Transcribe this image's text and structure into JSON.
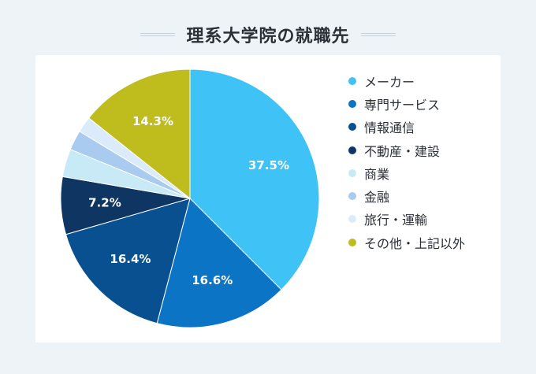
{
  "chart_data": {
    "type": "pie",
    "title": "理系大学院の就職先",
    "legend_position": "right",
    "categories": [
      "メーカー",
      "専門サービス",
      "情報通信",
      "不動産・建設",
      "商業",
      "金融",
      "旅行・運輸",
      "その他・上記以外"
    ],
    "values": [
      37.5,
      16.6,
      16.4,
      7.2,
      3.5,
      2.5,
      2.0,
      14.3
    ],
    "data_labels": [
      "37.5%",
      "16.6%",
      "16.4%",
      "7.2%",
      "",
      "",
      "",
      "14.3%"
    ],
    "colors": [
      "#3fc3f7",
      "#0c74c4",
      "#08508f",
      "#0f3563",
      "#c7eaf6",
      "#a8cbef",
      "#dcebfa",
      "#bfbc1e"
    ]
  }
}
